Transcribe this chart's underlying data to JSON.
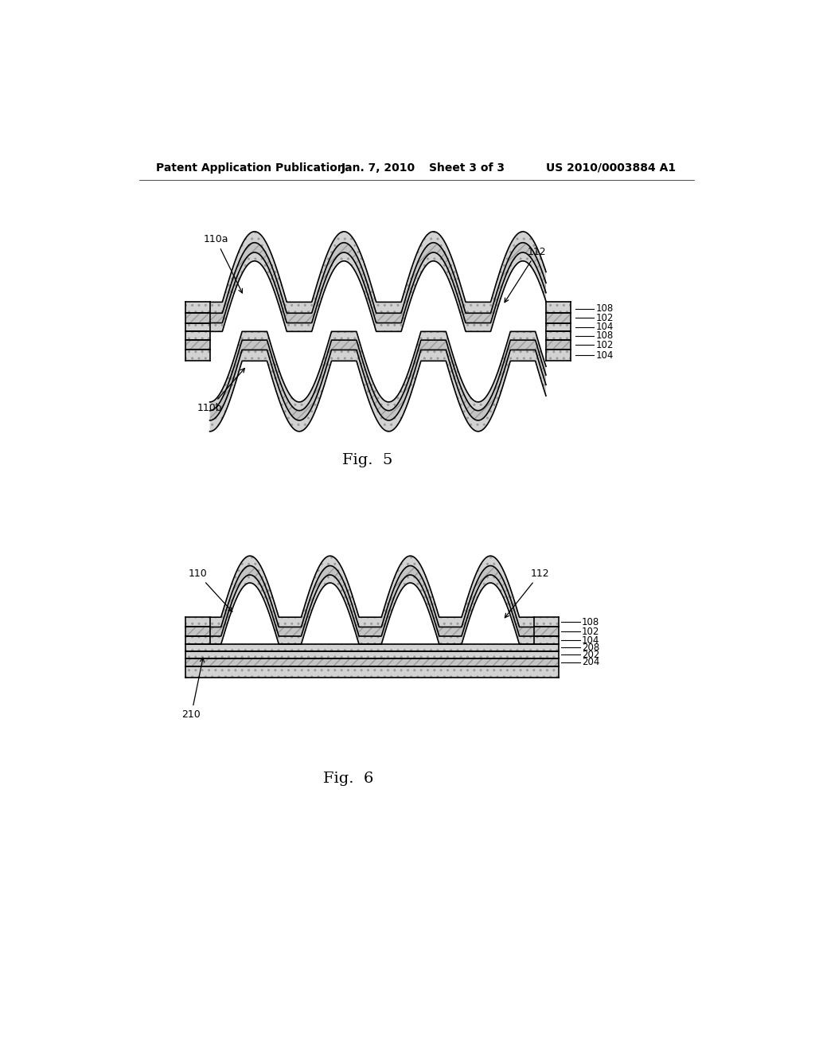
{
  "bg_color": "#ffffff",
  "header_text": "Patent Application Publication",
  "header_date": "Jan. 7, 2010",
  "header_sheet": "Sheet 3 of 3",
  "header_patent": "US 2010/0003884 A1",
  "fig5_label": "Fig.  5",
  "fig6_label": "Fig.  6",
  "line_color": "#000000",
  "label_color": "#000000",
  "color_dotted": "#d0d0d0",
  "color_hatch": "#b8b8b8",
  "color_dark": "#909090"
}
